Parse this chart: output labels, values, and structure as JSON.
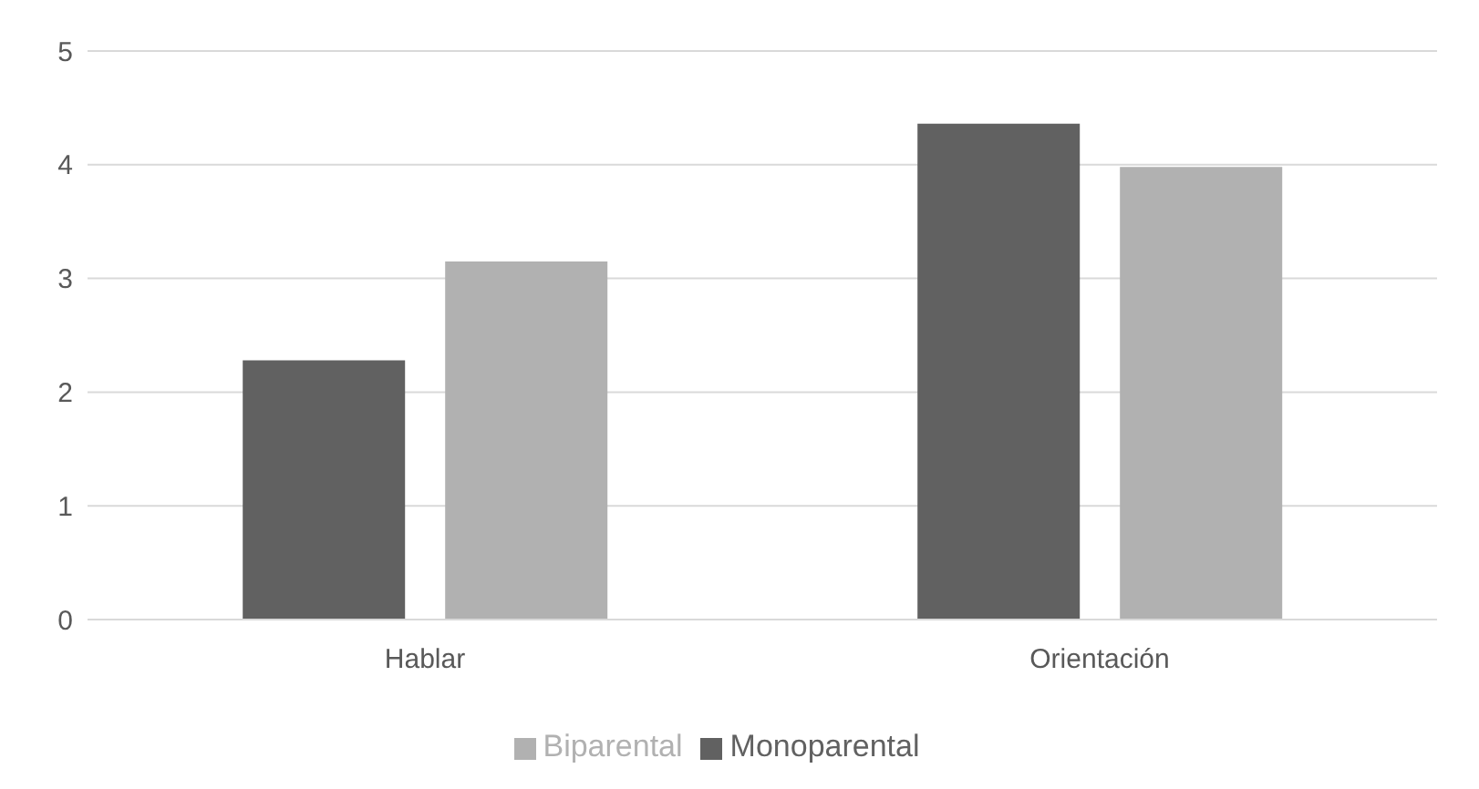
{
  "chart_data": {
    "type": "bar",
    "categories": [
      "Hablar",
      "Orientación"
    ],
    "series": [
      {
        "name": "Monoparental",
        "color": "#616161",
        "values": [
          2.28,
          4.36
        ]
      },
      {
        "name": "Biparental",
        "color": "#b1b1b1",
        "values": [
          3.15,
          3.98
        ]
      }
    ],
    "ylim": [
      0,
      5
    ],
    "yticks": [
      0,
      1,
      2,
      3,
      4,
      5
    ],
    "grid": "y",
    "legend": "bottom"
  }
}
